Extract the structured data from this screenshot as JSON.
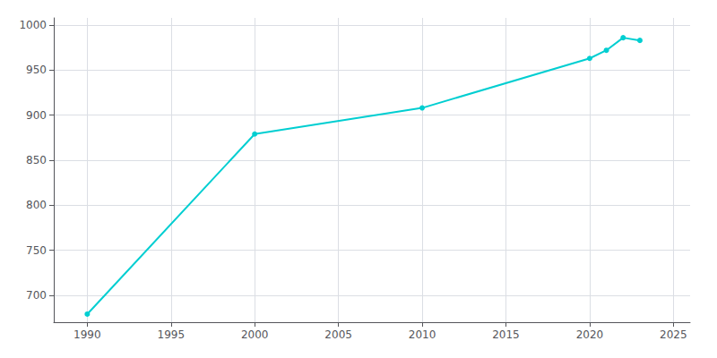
{
  "chart_data": {
    "type": "line",
    "x": [
      1990,
      2000,
      2010,
      2020,
      2021,
      2022,
      2023
    ],
    "values": [
      679,
      879,
      908,
      963,
      972,
      986,
      983
    ],
    "color": "#00CED1",
    "marker": "circle",
    "xlim": [
      1988,
      2026
    ],
    "ylim": [
      670,
      1008
    ],
    "xticks": [
      1990,
      1995,
      2000,
      2005,
      2010,
      2015,
      2020,
      2025
    ],
    "yticks": [
      700,
      750,
      800,
      850,
      900,
      950,
      1000
    ],
    "grid": true
  }
}
